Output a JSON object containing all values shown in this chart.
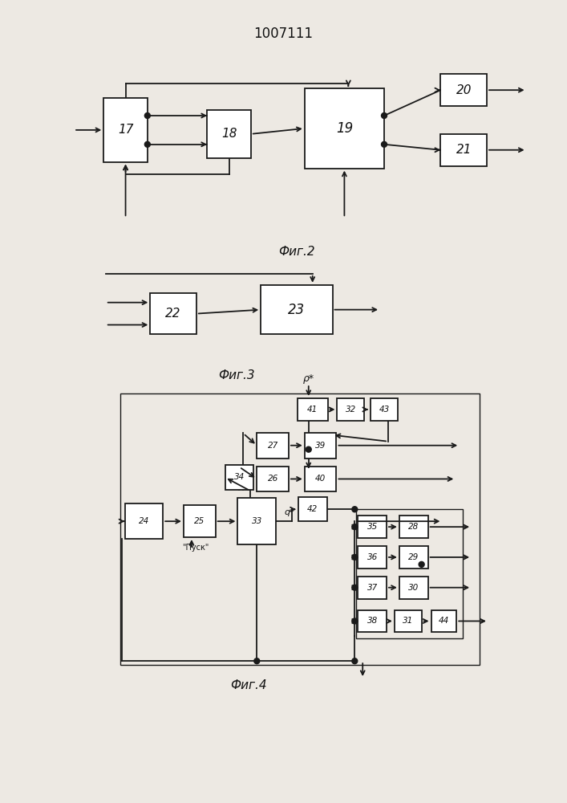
{
  "title": "1007111",
  "fig2_label": "Фиг.2",
  "fig3_label": "Фиг.3",
  "fig4_label": "Фиг.4",
  "bg_color": "#ede9e3",
  "line_color": "#1a1a1a"
}
